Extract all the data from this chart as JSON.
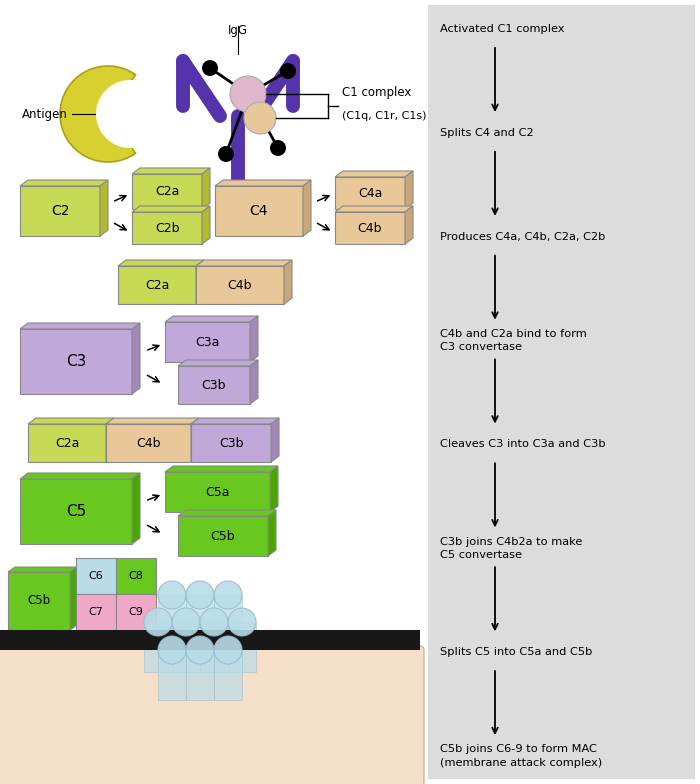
{
  "fig_width": 7.0,
  "fig_height": 7.84,
  "colors": {
    "yellow_green": "#c8d955",
    "yellow_green_dark": "#b0bb30",
    "tan": "#e8c898",
    "tan_dark": "#c8a878",
    "purple_c3": "#c0a8d8",
    "purple_c3_dark": "#a088b8",
    "green_c5": "#68c820",
    "green_c5_dark": "#48a800",
    "light_blue": "#b8dce8",
    "light_blue_dark": "#98bcc8",
    "pink": "#f0a8c8",
    "pink_dark": "#d888a8",
    "bg_right": "#dcdcdc",
    "antibody_purple": "#5533aa",
    "antigen_yellow": "#d8d030",
    "antigen_yellow_dark": "#a8a010",
    "c1q_pink": "#e0b8cc",
    "c1q_tan": "#e8c898",
    "membrane_black": "#181818",
    "membrane_peach": "#f5dfc8"
  },
  "right_panel_text": [
    "Activated C1 complex",
    "Splits C4 and C2",
    "Produces C4a, C4b, C2a, C2b",
    "C4b and C2a bind to form\nC3 convertase",
    "Cleaves C3 into C3a and C3b",
    "C3b joins C4b2a to make\nC5 convertase",
    "Splits C5 into C5a and C5b",
    "C5b joins C6-9 to form MAC\n(membrane attack complex)"
  ]
}
